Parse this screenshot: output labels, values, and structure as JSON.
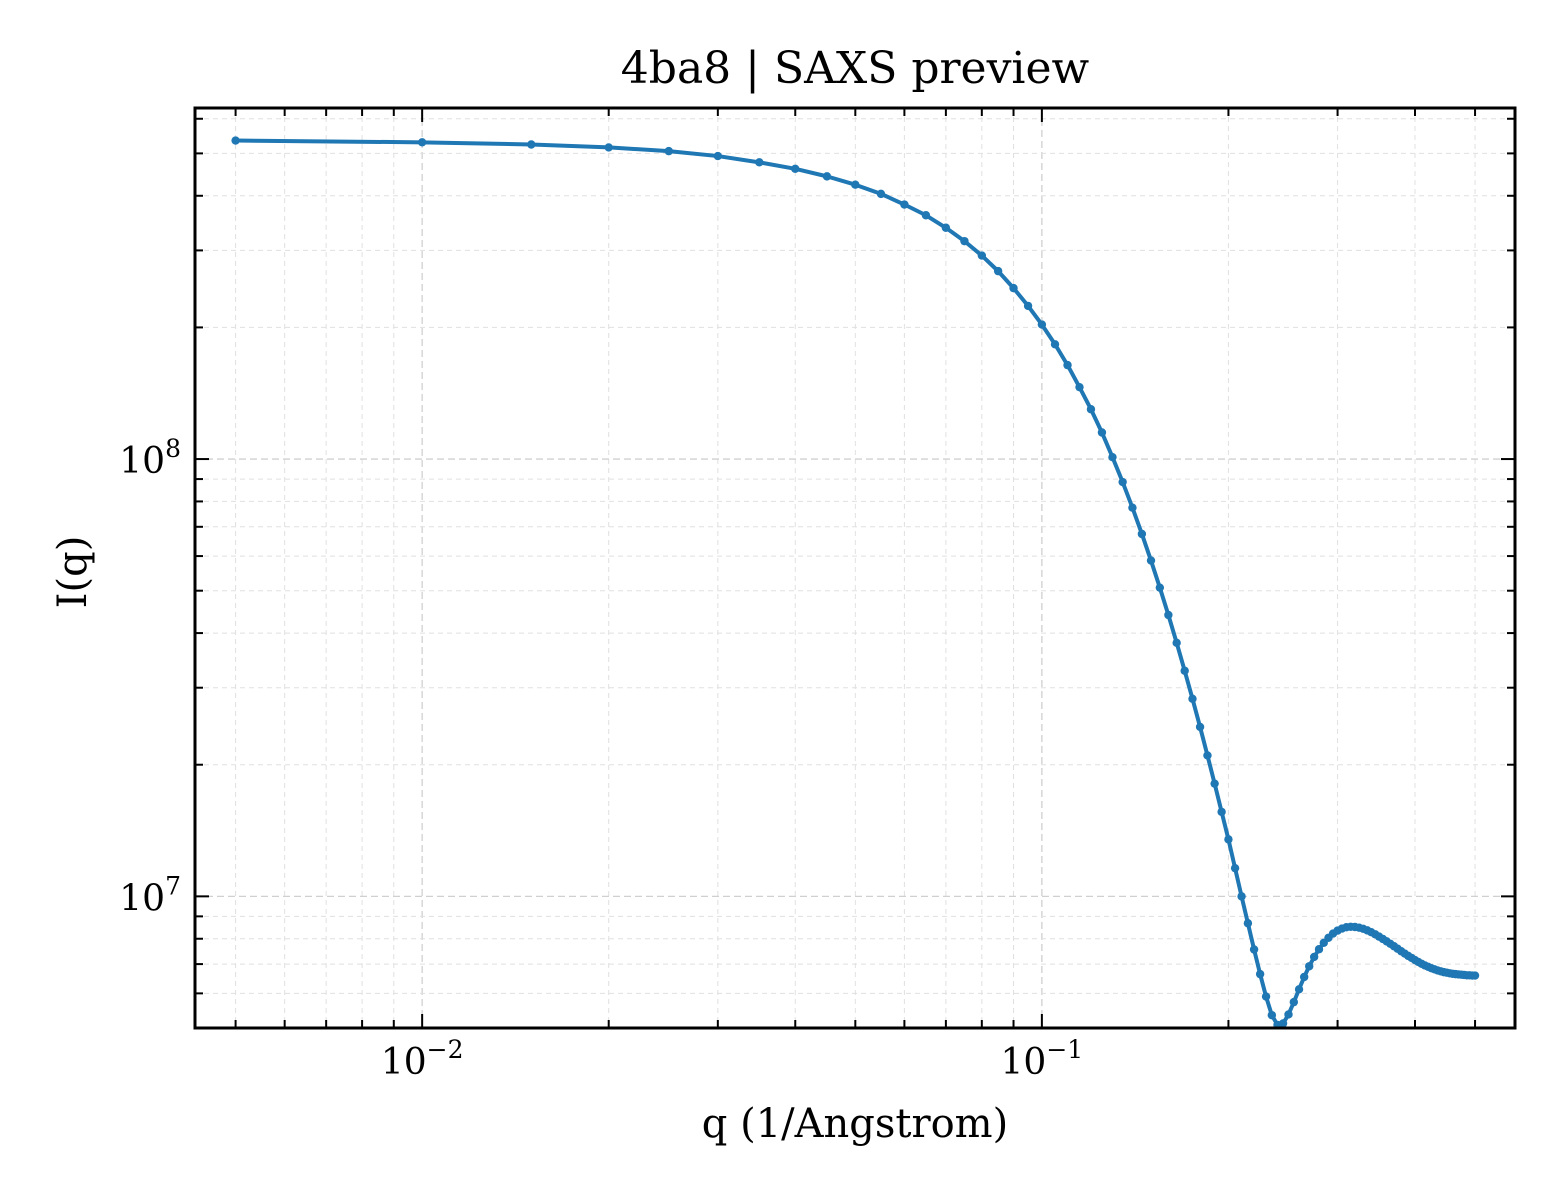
{
  "chart_data": {
    "type": "line",
    "title": "4ba8 | SAXS preview",
    "xlabel": "q (1/Angstrom)",
    "ylabel": "I(q)",
    "xscale": "log",
    "yscale": "log",
    "xlim": [
      0.0043,
      0.58
    ],
    "ylim": [
      5000000,
      635000000
    ],
    "grid": true,
    "color": "#1f77b4",
    "marker": "dot",
    "xticks": [
      {
        "value": 0.01,
        "base": "10",
        "exp": "−2"
      },
      {
        "value": 0.1,
        "base": "10",
        "exp": "−1"
      }
    ],
    "yticks": [
      {
        "value": 10000000,
        "base": "10",
        "exp": "7"
      },
      {
        "value": 100000000,
        "base": "10",
        "exp": "8"
      }
    ],
    "series": [
      {
        "x": [
          0.005,
          0.01,
          0.015,
          0.02,
          0.025,
          0.03,
          0.035,
          0.04,
          0.045,
          0.05,
          0.055,
          0.06,
          0.065,
          0.07,
          0.075,
          0.08,
          0.085,
          0.09,
          0.095,
          0.1,
          0.105,
          0.11,
          0.115,
          0.12,
          0.125,
          0.13,
          0.135,
          0.14,
          0.145,
          0.15,
          0.155,
          0.16,
          0.165,
          0.17,
          0.175,
          0.18,
          0.185,
          0.19,
          0.195,
          0.2,
          0.205,
          0.21,
          0.215,
          0.22,
          0.225,
          0.23,
          0.235,
          0.24,
          0.245,
          0.25,
          0.255,
          0.26,
          0.265,
          0.27,
          0.275,
          0.28,
          0.285,
          0.29,
          0.295,
          0.3,
          0.305,
          0.31,
          0.315,
          0.32,
          0.325,
          0.33,
          0.335,
          0.34,
          0.345,
          0.35,
          0.355,
          0.36,
          0.365,
          0.37,
          0.375,
          0.38,
          0.385,
          0.39,
          0.395,
          0.4,
          0.405,
          0.41,
          0.415,
          0.42,
          0.425,
          0.43,
          0.435,
          0.44,
          0.445,
          0.45,
          0.455,
          0.46,
          0.465,
          0.47,
          0.475,
          0.48,
          0.485,
          0.49,
          0.495,
          0.5
        ],
        "y": [
          535000000,
          530000000,
          524000000,
          516000000,
          506000000,
          493000000,
          477000000,
          461000000,
          443000000,
          424000000,
          404000000,
          382000000,
          361000000,
          338000000,
          315000000,
          292000000,
          269000000,
          246000000,
          224000000,
          203000000,
          183000000,
          164000000,
          146000000,
          130000000,
          115000000,
          101000000,
          88600000,
          77400000,
          67400000,
          58600000,
          50800000,
          44000000,
          38000000,
          32800000,
          28300000,
          24400000,
          21000000,
          18100000,
          15600000,
          13500000,
          11600000,
          10000000,
          8680000,
          7560000,
          6640000,
          5900000,
          5350000,
          5080000,
          5120000,
          5370000,
          5730000,
          6130000,
          6540000,
          6920000,
          7270000,
          7570000,
          7830000,
          8040000,
          8220000,
          8350000,
          8440000,
          8500000,
          8520000,
          8510000,
          8480000,
          8430000,
          8360000,
          8280000,
          8190000,
          8090000,
          7990000,
          7890000,
          7790000,
          7690000,
          7590000,
          7490000,
          7400000,
          7310000,
          7230000,
          7150000,
          7080000,
          7010000,
          6950000,
          6900000,
          6850000,
          6810000,
          6770000,
          6740000,
          6710000,
          6690000,
          6670000,
          6650000,
          6640000,
          6630000,
          6620000,
          6610000,
          6600000,
          6600000,
          6590000,
          6590000
        ]
      }
    ]
  }
}
